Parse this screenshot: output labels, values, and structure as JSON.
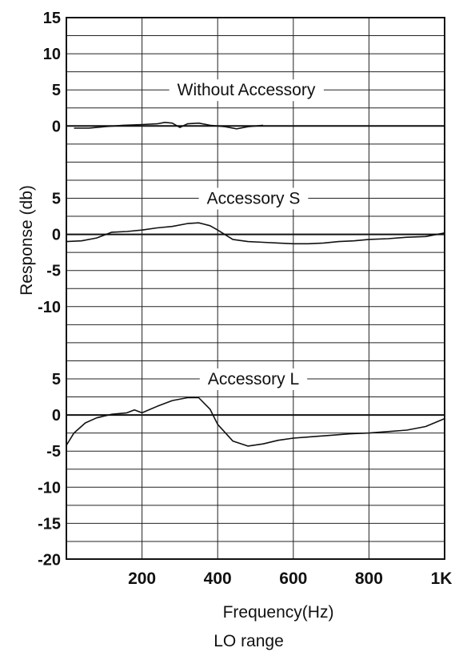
{
  "chart_data": {
    "type": "line",
    "ylabel": "Response (db)",
    "xlabel": "Frequency(Hz)",
    "subtitle": "LO range",
    "xlim": [
      0,
      1000
    ],
    "x_ticks": [
      {
        "value": 200,
        "label": "200"
      },
      {
        "value": 400,
        "label": "400"
      },
      {
        "value": 600,
        "label": "600"
      },
      {
        "value": 800,
        "label": "800"
      },
      {
        "value": 1000,
        "label": "1K"
      }
    ],
    "grid": true,
    "panels": [
      {
        "label": "Without Accessory",
        "ylim": [
          -5,
          15
        ],
        "y_ticks": [
          {
            "value": 15,
            "label": "15"
          },
          {
            "value": 10,
            "label": "10"
          },
          {
            "value": 5,
            "label": "5"
          },
          {
            "value": 0,
            "label": "0"
          }
        ],
        "series": [
          {
            "points": [
              [
                20,
                -0.3
              ],
              [
                60,
                -0.3
              ],
              [
                100,
                -0.1
              ],
              [
                150,
                0.1
              ],
              [
                200,
                0.2
              ],
              [
                240,
                0.3
              ],
              [
                260,
                0.5
              ],
              [
                280,
                0.4
              ],
              [
                300,
                -0.2
              ],
              [
                320,
                0.3
              ],
              [
                350,
                0.4
              ],
              [
                380,
                0.1
              ],
              [
                420,
                -0.1
              ],
              [
                450,
                -0.4
              ],
              [
                480,
                -0.1
              ],
              [
                520,
                0.1
              ]
            ]
          }
        ]
      },
      {
        "label": "Accessory S",
        "ylim": [
          -10,
          5
        ],
        "y_ticks": [
          {
            "value": 5,
            "label": "5"
          },
          {
            "value": 0,
            "label": "0"
          },
          {
            "value": -5,
            "label": "-5"
          },
          {
            "value": -10,
            "label": "-10"
          }
        ],
        "series": [
          {
            "points": [
              [
                0,
                -1.0
              ],
              [
                40,
                -0.9
              ],
              [
                80,
                -0.5
              ],
              [
                120,
                0.3
              ],
              [
                160,
                0.4
              ],
              [
                200,
                0.6
              ],
              [
                240,
                0.9
              ],
              [
                280,
                1.1
              ],
              [
                320,
                1.5
              ],
              [
                350,
                1.6
              ],
              [
                380,
                1.2
              ],
              [
                400,
                0.6
              ],
              [
                440,
                -0.7
              ],
              [
                480,
                -1.0
              ],
              [
                520,
                -1.1
              ],
              [
                560,
                -1.2
              ],
              [
                600,
                -1.3
              ],
              [
                640,
                -1.3
              ],
              [
                680,
                -1.2
              ],
              [
                720,
                -1.0
              ],
              [
                760,
                -0.9
              ],
              [
                800,
                -0.7
              ],
              [
                850,
                -0.6
              ],
              [
                900,
                -0.4
              ],
              [
                950,
                -0.3
              ],
              [
                1000,
                0.2
              ]
            ]
          }
        ]
      },
      {
        "label": "Accessory L",
        "ylim": [
          -20,
          7.5
        ],
        "y_ticks": [
          {
            "value": 5,
            "label": "5"
          },
          {
            "value": 0,
            "label": "0"
          },
          {
            "value": -5,
            "label": "-5"
          },
          {
            "value": -10,
            "label": "-10"
          },
          {
            "value": -15,
            "label": "-15"
          },
          {
            "value": -20,
            "label": "-20"
          }
        ],
        "series": [
          {
            "points": [
              [
                0,
                -4.2
              ],
              [
                20,
                -2.5
              ],
              [
                50,
                -1.1
              ],
              [
                80,
                -0.4
              ],
              [
                120,
                0.1
              ],
              [
                160,
                0.3
              ],
              [
                180,
                0.7
              ],
              [
                200,
                0.3
              ],
              [
                240,
                1.2
              ],
              [
                280,
                2.0
              ],
              [
                320,
                2.4
              ],
              [
                350,
                2.4
              ],
              [
                380,
                0.8
              ],
              [
                400,
                -1.3
              ],
              [
                440,
                -3.6
              ],
              [
                480,
                -4.3
              ],
              [
                520,
                -4.0
              ],
              [
                560,
                -3.5
              ],
              [
                600,
                -3.2
              ],
              [
                650,
                -3.0
              ],
              [
                700,
                -2.8
              ],
              [
                750,
                -2.6
              ],
              [
                800,
                -2.5
              ],
              [
                850,
                -2.3
              ],
              [
                900,
                -2.1
              ],
              [
                950,
                -1.6
              ],
              [
                1000,
                -0.5
              ]
            ]
          }
        ]
      }
    ]
  }
}
